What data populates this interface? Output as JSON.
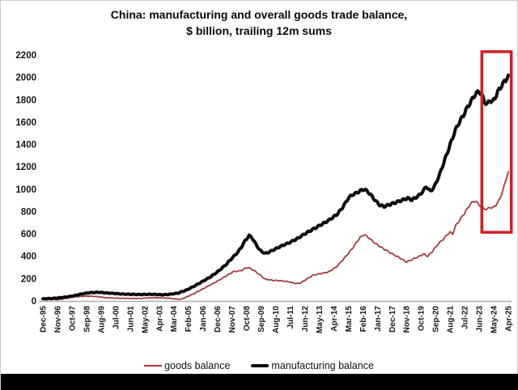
{
  "chart": {
    "title_line1": "China: manufacturing and overall goods trade balance,",
    "title_line2": "$ billion, trailing 12m sums"
  },
  "legend": {
    "goods_label": "goods balance",
    "manufacturing_label": "manufacturing balance"
  },
  "chart_data": {
    "type": "line",
    "title": "China: manufacturing and overall goods trade balance, $ billion, trailing 12m sums",
    "xlabel": "",
    "ylabel": "$ billion, trailing 12m sums",
    "ylim": [
      0,
      2200
    ],
    "yticks": [
      0,
      200,
      400,
      600,
      800,
      1000,
      1200,
      1400,
      1600,
      1800,
      2000,
      2200
    ],
    "grid": false,
    "legend_position": "bottom",
    "x_unit": "months since Dec-1995",
    "x_months_total": 352,
    "x_tick_step": 11,
    "x_tick_labels": [
      "Dec-95",
      "Nov-96",
      "Oct-97",
      "Sep-98",
      "Aug-99",
      "Jul-00",
      "Jun-01",
      "May-02",
      "Apr-03",
      "Mar-04",
      "Feb-05",
      "Jan-06",
      "Dec-06",
      "Nov-07",
      "Oct-08",
      "Sep-09",
      "Aug-10",
      "Jul-11",
      "Jun-12",
      "May-13",
      "Apr-14",
      "Mar-15",
      "Feb-16",
      "Jan-17",
      "Dec-17",
      "Nov-18",
      "Oct-19",
      "Sep-20",
      "Aug-21",
      "Jul-22",
      "Jun-23",
      "May-24",
      "Apr-25"
    ],
    "colors": {
      "goods": "#A23B3B",
      "manufacturing": "#0B0B0B",
      "highlight": "#CB2026",
      "axis": "#ADADAD"
    },
    "series": [
      {
        "name": "goods balance",
        "color_key": "goods",
        "stroke_width": 1.8,
        "jitter": 1.2,
        "points": [
          [
            0,
            16
          ],
          [
            12,
            12
          ],
          [
            24,
            38
          ],
          [
            30,
            42
          ],
          [
            36,
            43
          ],
          [
            42,
            38
          ],
          [
            48,
            29
          ],
          [
            60,
            24
          ],
          [
            72,
            22
          ],
          [
            84,
            30
          ],
          [
            96,
            25
          ],
          [
            100,
            18
          ],
          [
            104,
            15
          ],
          [
            108,
            32
          ],
          [
            114,
            65
          ],
          [
            120,
            102
          ],
          [
            126,
            140
          ],
          [
            132,
            177
          ],
          [
            138,
            220
          ],
          [
            144,
            262
          ],
          [
            150,
            272
          ],
          [
            154,
            298
          ],
          [
            156,
            296
          ],
          [
            160,
            270
          ],
          [
            164,
            235
          ],
          [
            168,
            196
          ],
          [
            174,
            185
          ],
          [
            180,
            181
          ],
          [
            186,
            172
          ],
          [
            192,
            155
          ],
          [
            195,
            162
          ],
          [
            198,
            185
          ],
          [
            204,
            230
          ],
          [
            210,
            245
          ],
          [
            216,
            259
          ],
          [
            222,
            305
          ],
          [
            228,
            382
          ],
          [
            234,
            470
          ],
          [
            240,
            570
          ],
          [
            243,
            594
          ],
          [
            246,
            570
          ],
          [
            252,
            510
          ],
          [
            258,
            465
          ],
          [
            264,
            423
          ],
          [
            270,
            385
          ],
          [
            275,
            348
          ],
          [
            280,
            375
          ],
          [
            284,
            395
          ],
          [
            288,
            421
          ],
          [
            291,
            400
          ],
          [
            294,
            435
          ],
          [
            300,
            524
          ],
          [
            303,
            555
          ],
          [
            306,
            595
          ],
          [
            308,
            615
          ],
          [
            310,
            600
          ],
          [
            312,
            670
          ],
          [
            318,
            770
          ],
          [
            324,
            878
          ],
          [
            327,
            895
          ],
          [
            330,
            860
          ],
          [
            333,
            830
          ],
          [
            336,
            818
          ],
          [
            338,
            842
          ],
          [
            340,
            828
          ],
          [
            342,
            855
          ],
          [
            344,
            875
          ],
          [
            346,
            930
          ],
          [
            348,
            990
          ],
          [
            350,
            1080
          ],
          [
            352,
            1155
          ]
        ]
      },
      {
        "name": "manufacturing balance",
        "color_key": "manufacturing",
        "stroke_width": 4,
        "jitter": 1.5,
        "points": [
          [
            0,
            20
          ],
          [
            6,
            22
          ],
          [
            12,
            28
          ],
          [
            18,
            36
          ],
          [
            24,
            48
          ],
          [
            30,
            65
          ],
          [
            36,
            75
          ],
          [
            42,
            78
          ],
          [
            48,
            72
          ],
          [
            54,
            68
          ],
          [
            60,
            62
          ],
          [
            66,
            60
          ],
          [
            72,
            58
          ],
          [
            78,
            59
          ],
          [
            84,
            60
          ],
          [
            90,
            55
          ],
          [
            96,
            60
          ],
          [
            102,
            70
          ],
          [
            108,
            95
          ],
          [
            114,
            130
          ],
          [
            120,
            170
          ],
          [
            126,
            210
          ],
          [
            132,
            260
          ],
          [
            138,
            320
          ],
          [
            144,
            395
          ],
          [
            147,
            430
          ],
          [
            150,
            480
          ],
          [
            153,
            540
          ],
          [
            156,
            585
          ],
          [
            158,
            568
          ],
          [
            161,
            510
          ],
          [
            164,
            455
          ],
          [
            168,
            425
          ],
          [
            171,
            437
          ],
          [
            174,
            455
          ],
          [
            180,
            490
          ],
          [
            186,
            520
          ],
          [
            192,
            555
          ],
          [
            198,
            600
          ],
          [
            204,
            640
          ],
          [
            210,
            680
          ],
          [
            216,
            720
          ],
          [
            222,
            770
          ],
          [
            225,
            810
          ],
          [
            228,
            860
          ],
          [
            231,
            920
          ],
          [
            234,
            950
          ],
          [
            237,
            965
          ],
          [
            240,
            985
          ],
          [
            243,
            1000
          ],
          [
            246,
            975
          ],
          [
            249,
            935
          ],
          [
            252,
            890
          ],
          [
            255,
            857
          ],
          [
            258,
            845
          ],
          [
            264,
            870
          ],
          [
            270,
            895
          ],
          [
            276,
            920
          ],
          [
            279,
            905
          ],
          [
            282,
            925
          ],
          [
            285,
            950
          ],
          [
            288,
            990
          ],
          [
            290,
            1025
          ],
          [
            293,
            980
          ],
          [
            296,
            1020
          ],
          [
            300,
            1130
          ],
          [
            303,
            1230
          ],
          [
            306,
            1330
          ],
          [
            309,
            1430
          ],
          [
            312,
            1530
          ],
          [
            315,
            1600
          ],
          [
            318,
            1660
          ],
          [
            321,
            1730
          ],
          [
            324,
            1790
          ],
          [
            327,
            1850
          ],
          [
            330,
            1875
          ],
          [
            332,
            1842
          ],
          [
            334,
            1785
          ],
          [
            336,
            1755
          ],
          [
            338,
            1798
          ],
          [
            340,
            1778
          ],
          [
            342,
            1820
          ],
          [
            345,
            1890
          ],
          [
            348,
            1945
          ],
          [
            350,
            1975
          ],
          [
            352,
            2020
          ]
        ]
      }
    ],
    "highlight_box": {
      "month_start": 332,
      "month_end": 354.3,
      "value_top": 2230,
      "value_bottom": 615,
      "stroke_width": 3.5
    }
  }
}
